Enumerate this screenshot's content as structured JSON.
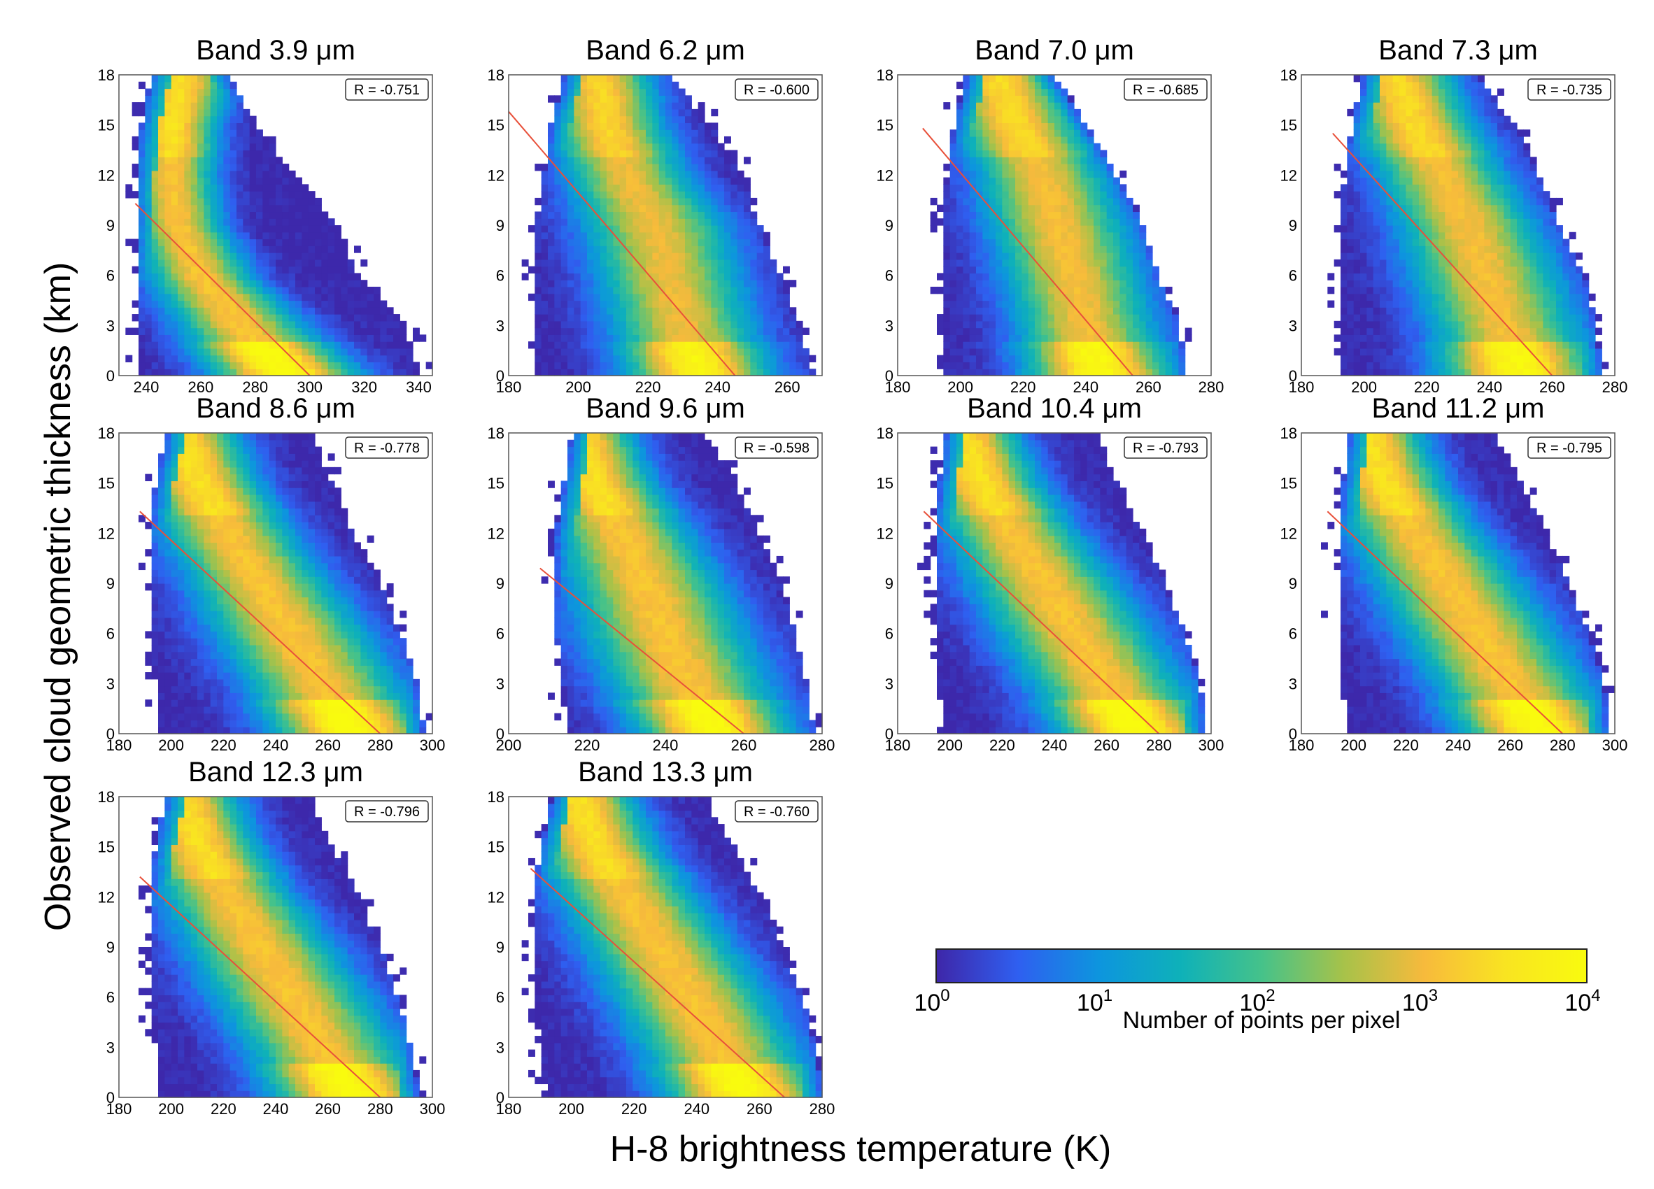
{
  "figure": {
    "ylabel": "Observed cloud geometric thickness (km)",
    "xlabel": "H-8 brightness temperature (K)"
  },
  "colorbar": {
    "label": "Number of points per pixel",
    "tick_base": "10",
    "tick_exponents": [
      "0",
      "1",
      "2",
      "3",
      "4"
    ],
    "colors": [
      "#3e26a8",
      "#2f5ff0",
      "#0d95de",
      "#0eb1b9",
      "#45c28a",
      "#a6c24a",
      "#f7ba3c",
      "#f9e421",
      "#f9fb0e"
    ]
  },
  "fit_line_color": "#e8503a",
  "chart_data": [
    {
      "type": "heatmap",
      "title": "Band 3.9 μm",
      "r_text": "R = -0.751",
      "r": -0.751,
      "xlim": [
        230,
        345
      ],
      "xticks": [
        240,
        260,
        280,
        300,
        320,
        340
      ],
      "ylim": [
        0,
        18
      ],
      "yticks": [
        0,
        3,
        6,
        9,
        12,
        15,
        18
      ],
      "fit": [
        [
          236,
          10.3
        ],
        [
          300,
          0
        ]
      ],
      "density_ridge": [
        [
          0,
          292,
          18
        ],
        [
          3,
          275,
          16
        ],
        [
          6,
          260,
          13
        ],
        [
          9,
          252,
          11
        ],
        [
          12,
          249,
          11
        ],
        [
          15,
          250,
          11
        ],
        [
          18,
          253,
          12
        ]
      ],
      "data_extent": [
        [
          0,
          236,
          340
        ],
        [
          3,
          236,
          335
        ],
        [
          6,
          236,
          318
        ],
        [
          9,
          236,
          310
        ],
        [
          12,
          236,
          295
        ],
        [
          15,
          238,
          280
        ],
        [
          18,
          242,
          270
        ]
      ],
      "peak_log10": 4.0
    },
    {
      "type": "heatmap",
      "title": "Band 6.2 μm",
      "r_text": "R = -0.600",
      "r": -0.6,
      "xlim": [
        180,
        270
      ],
      "xticks": [
        180,
        200,
        220,
        240,
        260
      ],
      "ylim": [
        0,
        18
      ],
      "yticks": [
        0,
        3,
        6,
        9,
        12,
        15,
        18
      ],
      "fit": [
        [
          180,
          15.8
        ],
        [
          245,
          0
        ]
      ],
      "density_ridge": [
        [
          0,
          235,
          14
        ],
        [
          3,
          230,
          14
        ],
        [
          6,
          226,
          14
        ],
        [
          9,
          222,
          14
        ],
        [
          12,
          214,
          12
        ],
        [
          15,
          208,
          11
        ],
        [
          18,
          206,
          10
        ]
      ],
      "data_extent": [
        [
          0,
          188,
          268
        ],
        [
          3,
          188,
          263
        ],
        [
          6,
          188,
          258
        ],
        [
          9,
          188,
          252
        ],
        [
          12,
          190,
          247
        ],
        [
          15,
          192,
          238
        ],
        [
          18,
          196,
          226
        ]
      ],
      "peak_log10": 3.8
    },
    {
      "type": "heatmap",
      "title": "Band 7.0 μm",
      "r_text": "R = -0.685",
      "r": -0.685,
      "xlim": [
        180,
        280
      ],
      "xticks": [
        180,
        200,
        220,
        240,
        260,
        280
      ],
      "ylim": [
        0,
        18
      ],
      "yticks": [
        0,
        3,
        6,
        9,
        12,
        15,
        18
      ],
      "fit": [
        [
          188,
          14.8
        ],
        [
          255,
          0
        ]
      ],
      "density_ridge": [
        [
          0,
          245,
          16
        ],
        [
          3,
          240,
          15
        ],
        [
          6,
          236,
          15
        ],
        [
          9,
          231,
          15
        ],
        [
          12,
          226,
          14
        ],
        [
          15,
          218,
          13
        ],
        [
          18,
          212,
          12
        ]
      ],
      "data_extent": [
        [
          0,
          194,
          272
        ],
        [
          3,
          194,
          270
        ],
        [
          6,
          194,
          263
        ],
        [
          9,
          194,
          258
        ],
        [
          12,
          196,
          250
        ],
        [
          15,
          198,
          240
        ],
        [
          18,
          202,
          230
        ]
      ],
      "peak_log10": 3.9
    },
    {
      "type": "heatmap",
      "title": "Band 7.3 μm",
      "r_text": "R = -0.735",
      "r": -0.735,
      "xlim": [
        180,
        280
      ],
      "xticks": [
        180,
        200,
        220,
        240,
        260,
        280
      ],
      "ylim": [
        0,
        18
      ],
      "yticks": [
        0,
        3,
        6,
        9,
        12,
        15,
        18
      ],
      "fit": [
        [
          190,
          14.5
        ],
        [
          260,
          0
        ]
      ],
      "density_ridge": [
        [
          0,
          250,
          17
        ],
        [
          3,
          245,
          16
        ],
        [
          6,
          239,
          16
        ],
        [
          9,
          233,
          15
        ],
        [
          12,
          225,
          14
        ],
        [
          15,
          216,
          13
        ],
        [
          18,
          210,
          12
        ]
      ],
      "data_extent": [
        [
          0,
          192,
          276
        ],
        [
          3,
          192,
          274
        ],
        [
          6,
          192,
          270
        ],
        [
          9,
          192,
          262
        ],
        [
          12,
          194,
          256
        ],
        [
          15,
          196,
          248
        ],
        [
          18,
          200,
          236
        ]
      ],
      "peak_log10": 3.9
    },
    {
      "type": "heatmap",
      "title": "Band 8.6 μm",
      "r_text": "R = -0.778",
      "r": -0.778,
      "xlim": [
        180,
        300
      ],
      "xticks": [
        180,
        200,
        220,
        240,
        260,
        280,
        300
      ],
      "ylim": [
        0,
        18
      ],
      "yticks": [
        0,
        3,
        6,
        9,
        12,
        15,
        18
      ],
      "fit": [
        [
          188,
          13.3
        ],
        [
          280,
          0
        ]
      ],
      "density_ridge": [
        [
          0,
          270,
          20
        ],
        [
          3,
          258,
          20
        ],
        [
          6,
          246,
          20
        ],
        [
          9,
          234,
          18
        ],
        [
          12,
          222,
          17
        ],
        [
          15,
          211,
          15
        ],
        [
          18,
          204,
          14
        ]
      ],
      "data_extent": [
        [
          0,
          196,
          297
        ],
        [
          3,
          194,
          294
        ],
        [
          6,
          192,
          288
        ],
        [
          9,
          192,
          280
        ],
        [
          12,
          192,
          270
        ],
        [
          15,
          194,
          262
        ],
        [
          18,
          198,
          252
        ]
      ],
      "peak_log10": 4.0
    },
    {
      "type": "heatmap",
      "title": "Band 9.6 μm",
      "r_text": "R = -0.598",
      "r": -0.598,
      "xlim": [
        200,
        280
      ],
      "xticks": [
        200,
        220,
        240,
        260,
        280
      ],
      "ylim": [
        0,
        18
      ],
      "yticks": [
        0,
        3,
        6,
        9,
        12,
        15,
        18
      ],
      "fit": [
        [
          208,
          9.9
        ],
        [
          260,
          0
        ]
      ],
      "density_ridge": [
        [
          0,
          253,
          13
        ],
        [
          3,
          246,
          14
        ],
        [
          6,
          240,
          14
        ],
        [
          9,
          235,
          13
        ],
        [
          12,
          229,
          12
        ],
        [
          15,
          222,
          10
        ],
        [
          18,
          218,
          9
        ]
      ],
      "data_extent": [
        [
          0,
          216,
          278
        ],
        [
          3,
          214,
          276
        ],
        [
          6,
          212,
          273
        ],
        [
          9,
          212,
          270
        ],
        [
          12,
          212,
          264
        ],
        [
          15,
          214,
          258
        ],
        [
          18,
          216,
          250
        ]
      ],
      "peak_log10": 4.0
    },
    {
      "type": "heatmap",
      "title": "Band 10.4 μm",
      "r_text": "R = -0.793",
      "r": -0.793,
      "xlim": [
        180,
        300
      ],
      "xticks": [
        180,
        200,
        220,
        240,
        260,
        280,
        300
      ],
      "ylim": [
        0,
        18
      ],
      "yticks": [
        0,
        3,
        6,
        9,
        12,
        15,
        18
      ],
      "fit": [
        [
          190,
          13.3
        ],
        [
          280,
          0
        ]
      ],
      "density_ridge": [
        [
          0,
          272,
          20
        ],
        [
          3,
          260,
          20
        ],
        [
          6,
          248,
          20
        ],
        [
          9,
          236,
          19
        ],
        [
          12,
          224,
          17
        ],
        [
          15,
          212,
          15
        ],
        [
          18,
          205,
          14
        ]
      ],
      "data_extent": [
        [
          0,
          198,
          298
        ],
        [
          3,
          196,
          296
        ],
        [
          6,
          194,
          290
        ],
        [
          9,
          194,
          282
        ],
        [
          12,
          194,
          274
        ],
        [
          15,
          196,
          264
        ],
        [
          18,
          198,
          254
        ]
      ],
      "peak_log10": 4.0
    },
    {
      "type": "heatmap",
      "title": "Band 11.2 μm",
      "r_text": "R = -0.795",
      "r": -0.795,
      "xlim": [
        180,
        300
      ],
      "xticks": [
        180,
        200,
        220,
        240,
        260,
        280,
        300
      ],
      "ylim": [
        0,
        18
      ],
      "yticks": [
        0,
        3,
        6,
        9,
        12,
        15,
        18
      ],
      "fit": [
        [
          190,
          13.3
        ],
        [
          280,
          0
        ]
      ],
      "density_ridge": [
        [
          0,
          272,
          20
        ],
        [
          3,
          260,
          20
        ],
        [
          6,
          248,
          20
        ],
        [
          9,
          236,
          19
        ],
        [
          12,
          224,
          17
        ],
        [
          15,
          212,
          15
        ],
        [
          18,
          205,
          14
        ]
      ],
      "data_extent": [
        [
          0,
          198,
          298
        ],
        [
          3,
          196,
          296
        ],
        [
          6,
          194,
          290
        ],
        [
          9,
          194,
          282
        ],
        [
          12,
          194,
          274
        ],
        [
          15,
          196,
          264
        ],
        [
          18,
          198,
          254
        ]
      ],
      "peak_log10": 4.0
    },
    {
      "type": "heatmap",
      "title": "Band 12.3 μm",
      "r_text": "R = -0.796",
      "r": -0.796,
      "xlim": [
        180,
        300
      ],
      "xticks": [
        180,
        200,
        220,
        240,
        260,
        280,
        300
      ],
      "ylim": [
        0,
        18
      ],
      "yticks": [
        0,
        3,
        6,
        9,
        12,
        15,
        18
      ],
      "fit": [
        [
          188,
          13.2
        ],
        [
          280,
          0
        ]
      ],
      "density_ridge": [
        [
          0,
          270,
          20
        ],
        [
          3,
          258,
          20
        ],
        [
          6,
          246,
          20
        ],
        [
          9,
          234,
          19
        ],
        [
          12,
          222,
          17
        ],
        [
          15,
          211,
          15
        ],
        [
          18,
          204,
          14
        ]
      ],
      "data_extent": [
        [
          0,
          196,
          295
        ],
        [
          3,
          194,
          292
        ],
        [
          6,
          192,
          287
        ],
        [
          9,
          192,
          280
        ],
        [
          12,
          192,
          272
        ],
        [
          15,
          194,
          262
        ],
        [
          18,
          198,
          252
        ]
      ],
      "peak_log10": 4.0
    },
    {
      "type": "heatmap",
      "title": "Band 13.3 μm",
      "r_text": "R = -0.760",
      "r": -0.76,
      "xlim": [
        180,
        280
      ],
      "xticks": [
        180,
        200,
        220,
        240,
        260,
        280
      ],
      "ylim": [
        0,
        18
      ],
      "yticks": [
        0,
        3,
        6,
        9,
        12,
        15,
        18
      ],
      "fit": [
        [
          187,
          13.7
        ],
        [
          268,
          0
        ]
      ],
      "density_ridge": [
        [
          0,
          256,
          17
        ],
        [
          3,
          247,
          17
        ],
        [
          6,
          238,
          17
        ],
        [
          9,
          228,
          16
        ],
        [
          12,
          218,
          15
        ],
        [
          15,
          208,
          13
        ],
        [
          18,
          202,
          12
        ]
      ],
      "data_extent": [
        [
          0,
          192,
          280
        ],
        [
          3,
          190,
          278
        ],
        [
          6,
          188,
          274
        ],
        [
          9,
          188,
          267
        ],
        [
          12,
          188,
          260
        ],
        [
          15,
          190,
          252
        ],
        [
          18,
          194,
          242
        ]
      ],
      "peak_log10": 4.0
    }
  ]
}
